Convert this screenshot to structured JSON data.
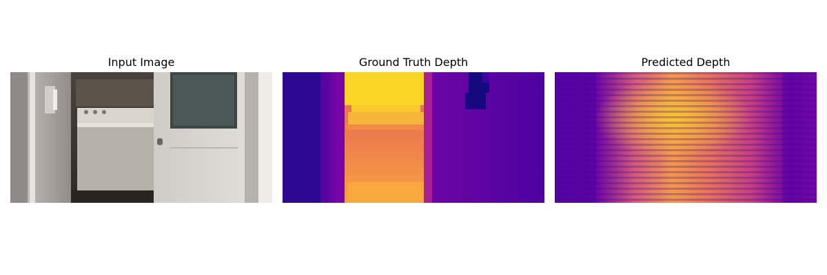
{
  "figure": {
    "panels": [
      {
        "title": "Input Image",
        "content": "rgb-photo",
        "colors": {
          "wall": "#8f8a88",
          "door": "#d6d2cc",
          "washer": "#bdb9b1",
          "floor": "#2a2420"
        }
      },
      {
        "title": "Ground Truth Depth",
        "content": "depth-map",
        "colormap": "plasma"
      },
      {
        "title": "Predicted Depth",
        "content": "depth-map",
        "colormap": "plasma"
      }
    ]
  }
}
